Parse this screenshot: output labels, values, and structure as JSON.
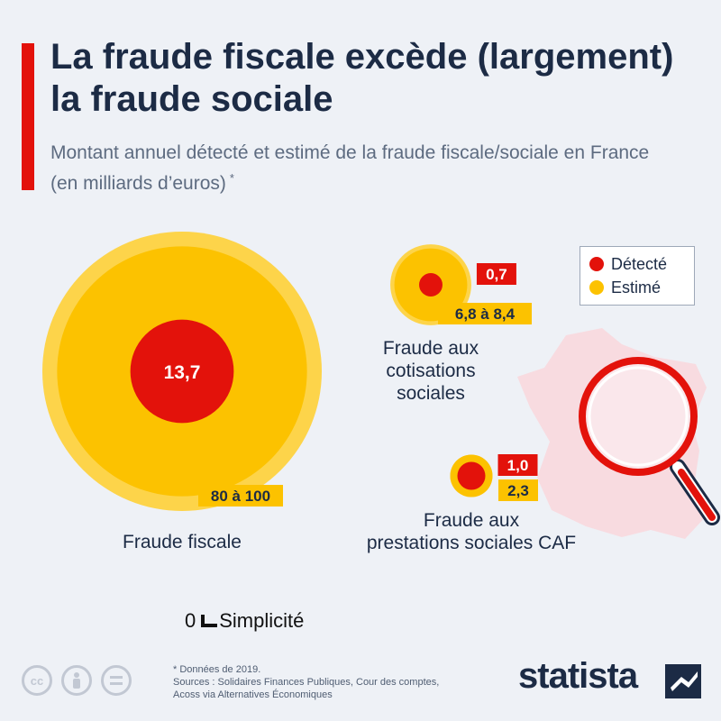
{
  "title": "La fraude fiscale excède (largement) la fraude sociale",
  "subtitle": "Montant annuel détecté et estimé de la fraude fiscale/sociale en France (en milliards d’euros)",
  "subtitle_mark": "*",
  "legend": [
    {
      "label": "Détecté",
      "color": "#e3120b"
    },
    {
      "label": "Estimé",
      "color": "#fcc200"
    }
  ],
  "colors": {
    "detected": "#e3120b",
    "estimated": "#fcc200",
    "estimated_halo": "#fdd44a",
    "text_dark": "#1c2b45",
    "map": "#f8dbe0"
  },
  "icons": [
    "france-map-icon",
    "magnifying-glass-icon",
    "cc-icon",
    "person-icon",
    "equals-icon",
    "statista-logo-icon"
  ],
  "chart_data": {
    "type": "bubble",
    "series": [
      "Détecté",
      "Estimé"
    ],
    "categories": [
      {
        "label_lines": [
          "Fraude fiscale"
        ],
        "detected": 13.7,
        "detected_label": "13,7",
        "estimated": [
          80,
          100
        ],
        "estimated_label": "80 à 100"
      },
      {
        "label_lines": [
          "Fraude aux",
          "cotisations",
          "sociales"
        ],
        "detected": 0.7,
        "detected_label": "0,7",
        "estimated": [
          6.8,
          8.4
        ],
        "estimated_label": "6,8 à 8,4"
      },
      {
        "label_lines": [
          "Fraude aux",
          "prestations sociales CAF"
        ],
        "detected": 1.0,
        "detected_label": "1,0",
        "estimated": [
          2.3,
          2.3
        ],
        "estimated_label": "2,3"
      }
    ],
    "unit": "milliards d’euros",
    "legend_position": "top-right"
  },
  "brand_note": {
    "prefix": "0",
    "text": "Simplicité"
  },
  "notes": {
    "footnote": "* Données de 2019.",
    "sources_line1": "Sources : Solidaires Finances Publiques, Cour des comptes,",
    "sources_line2": "Acoss via Alternatives Économiques"
  },
  "logo": {
    "text": "statista"
  }
}
